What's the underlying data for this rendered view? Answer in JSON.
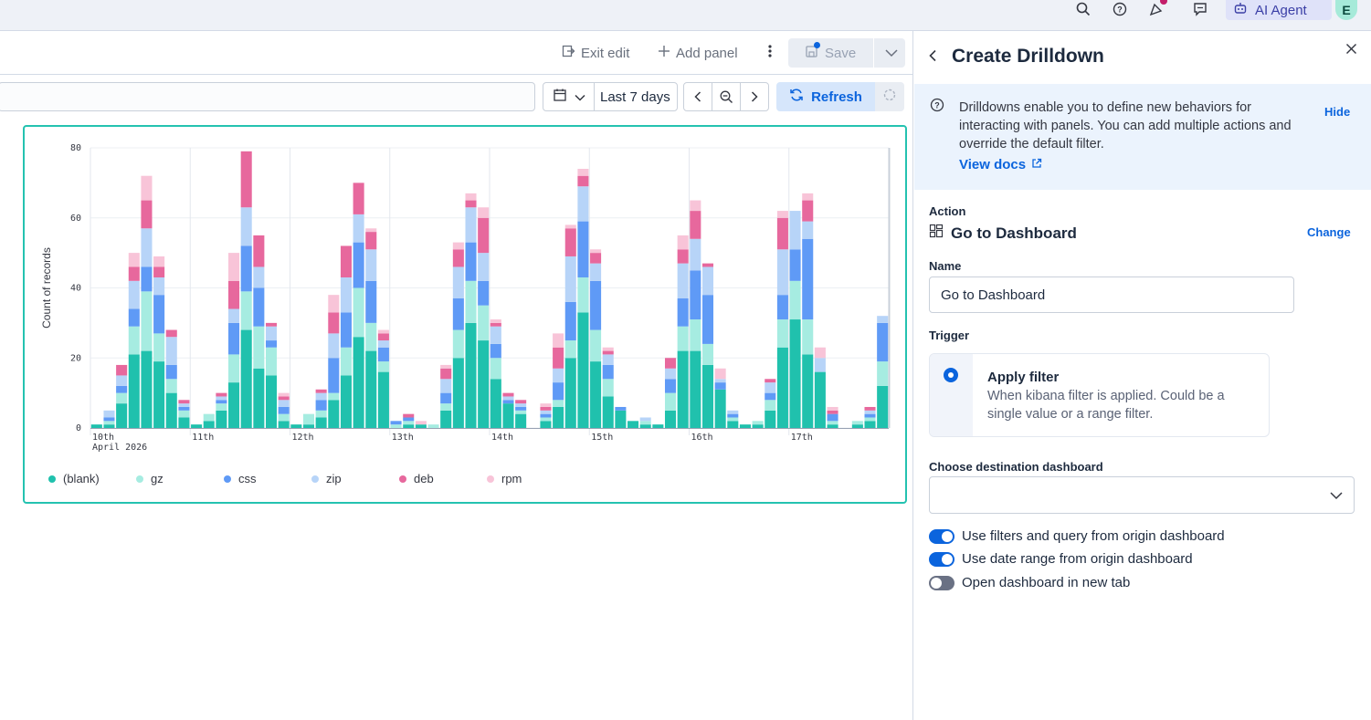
{
  "topbar": {
    "ai_agent_label": "AI Agent",
    "avatar_initial": "E"
  },
  "toolbar": {
    "exit_edit_label": "Exit edit",
    "add_panel_label": "Add panel",
    "save_label": "Save"
  },
  "query": {
    "date_range_label": "Last 7 days",
    "refresh_label": "Refresh"
  },
  "chart_data": {
    "type": "bar",
    "stacked": true,
    "ylabel": "Count of records",
    "ylim": [
      0,
      80
    ],
    "yticks": [
      0,
      20,
      40,
      60,
      80
    ],
    "x_tick_labels": [
      "10th",
      "11th",
      "12th",
      "13th",
      "14th",
      "15th",
      "16th",
      "17th"
    ],
    "x_tick_sublabel": "April 2026",
    "grid": true,
    "legend_position": "bottom",
    "series": [
      {
        "name": "(blank)",
        "color": "#20c1ad",
        "values": [
          1,
          1,
          7,
          21,
          22,
          19,
          10,
          3,
          1,
          2,
          5,
          13,
          28,
          17,
          15,
          2,
          1,
          1,
          3,
          8,
          15,
          26,
          22,
          16,
          0,
          1,
          1,
          0,
          5,
          20,
          30,
          25,
          14,
          7,
          4,
          0,
          2,
          6,
          20,
          33,
          19,
          9,
          5,
          2,
          1,
          1,
          5,
          22,
          22,
          18,
          11,
          2,
          1,
          1,
          5,
          23,
          31,
          21,
          16,
          1,
          0,
          1,
          2,
          12
        ]
      },
      {
        "name": "gz",
        "color": "#a6ece1",
        "values": [
          0,
          1,
          3,
          8,
          17,
          8,
          4,
          2,
          0,
          2,
          2,
          8,
          11,
          12,
          8,
          2,
          0,
          3,
          2,
          2,
          8,
          14,
          8,
          3,
          1,
          1,
          0,
          1,
          2,
          8,
          12,
          10,
          6,
          0,
          1,
          0,
          1,
          2,
          5,
          10,
          9,
          5,
          0,
          0,
          1,
          0,
          5,
          7,
          9,
          6,
          0,
          1,
          0,
          1,
          3,
          8,
          11,
          10,
          0,
          1,
          0,
          1,
          1,
          7
        ]
      },
      {
        "name": "css",
        "color": "#5f9af6",
        "values": [
          0,
          1,
          2,
          5,
          7,
          11,
          4,
          1,
          0,
          0,
          1,
          9,
          13,
          11,
          2,
          2,
          0,
          0,
          3,
          10,
          10,
          13,
          12,
          4,
          1,
          1,
          0,
          0,
          3,
          9,
          11,
          7,
          4,
          1,
          1,
          0,
          1,
          5,
          11,
          16,
          14,
          4,
          1,
          0,
          0,
          0,
          4,
          8,
          14,
          14,
          2,
          1,
          0,
          0,
          2,
          7,
          9,
          23,
          0,
          2,
          0,
          0,
          1,
          11
        ]
      },
      {
        "name": "zip",
        "color": "#b7d4f8",
        "values": [
          0,
          2,
          3,
          8,
          11,
          5,
          8,
          1,
          0,
          0,
          1,
          4,
          11,
          6,
          4,
          2,
          0,
          0,
          2,
          7,
          10,
          8,
          9,
          2,
          0,
          0,
          0,
          0,
          4,
          9,
          10,
          8,
          5,
          1,
          1,
          0,
          1,
          4,
          13,
          10,
          5,
          3,
          0,
          0,
          1,
          0,
          3,
          10,
          9,
          8,
          1,
          1,
          0,
          0,
          3,
          13,
          11,
          5,
          4,
          0,
          0,
          0,
          1,
          2
        ]
      },
      {
        "name": "deb",
        "color": "#e7689d",
        "values": [
          0,
          0,
          3,
          4,
          8,
          3,
          2,
          1,
          0,
          0,
          1,
          8,
          16,
          9,
          1,
          1,
          0,
          0,
          1,
          6,
          9,
          9,
          5,
          2,
          0,
          1,
          0,
          0,
          3,
          5,
          2,
          10,
          1,
          1,
          1,
          0,
          1,
          6,
          8,
          3,
          3,
          1,
          0,
          0,
          0,
          0,
          3,
          4,
          8,
          1,
          0,
          0,
          0,
          0,
          1,
          9,
          0,
          6,
          0,
          1,
          0,
          0,
          1,
          0
        ]
      },
      {
        "name": "rpm",
        "color": "#f8c4d8",
        "values": [
          0,
          0,
          0,
          4,
          7,
          3,
          0,
          0,
          0,
          0,
          0,
          8,
          0,
          0,
          0,
          1,
          0,
          0,
          0,
          5,
          0,
          0,
          1,
          1,
          0,
          0,
          1,
          0,
          1,
          2,
          2,
          3,
          1,
          0,
          0,
          0,
          1,
          4,
          1,
          2,
          1,
          1,
          0,
          0,
          0,
          0,
          0,
          4,
          3,
          0,
          3,
          0,
          0,
          0,
          0,
          2,
          0,
          2,
          3,
          1,
          0,
          0,
          0,
          0
        ]
      }
    ]
  },
  "flyout": {
    "title": "Create Drilldown",
    "callout_text": "Drilldowns enable you to define new behaviors for interacting with panels. You can add multiple actions and override the default filter.",
    "callout_link": "View docs",
    "hide_label": "Hide",
    "action_label": "Action",
    "action_value": "Go to Dashboard",
    "change_label": "Change",
    "name_label": "Name",
    "name_value": "Go to Dashboard",
    "trigger_label": "Trigger",
    "trigger_title": "Apply filter",
    "trigger_desc": "When kibana filter is applied. Could be a single value or a range filter.",
    "destination_label": "Choose destination dashboard",
    "destination_value": "",
    "toggles": [
      {
        "label": "Use filters and query from origin dashboard",
        "on": true
      },
      {
        "label": "Use date range from origin dashboard",
        "on": true
      },
      {
        "label": "Open dashboard in new tab",
        "on": false
      }
    ]
  }
}
